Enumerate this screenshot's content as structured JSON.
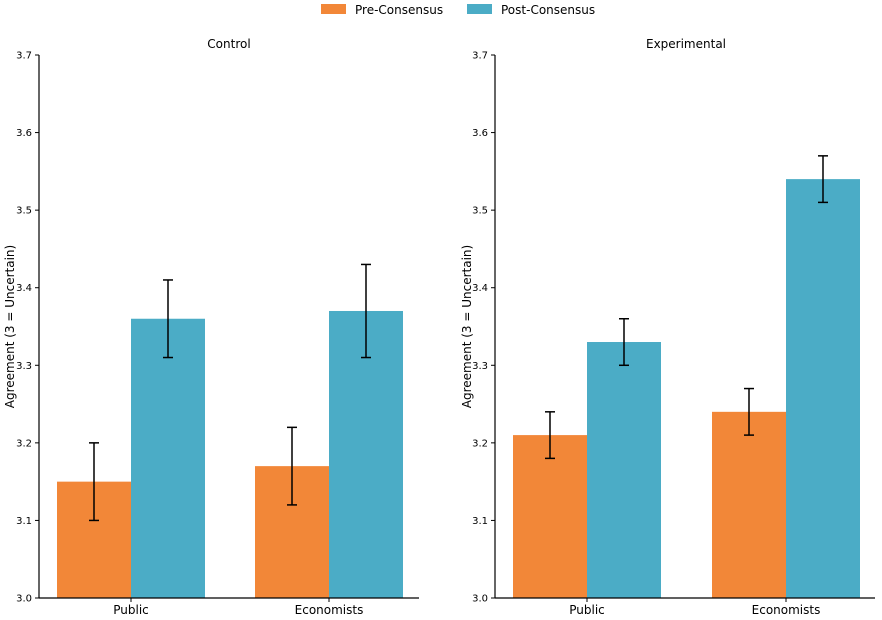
{
  "legend": {
    "entries": [
      {
        "label": "Pre-Consensus",
        "color": "#F28738"
      },
      {
        "label": "Post-Consensus",
        "color": "#4BACC6"
      }
    ],
    "placement": "top-center"
  },
  "chart_data": [
    {
      "type": "bar",
      "title": "Control",
      "ylabel": "Agreement (3 = Uncertain)",
      "xlabel": "",
      "categories": [
        "Public",
        "Economists"
      ],
      "ylim": [
        3.0,
        3.7
      ],
      "yticks": [
        "3.0",
        "3.1",
        "3.2",
        "3.3",
        "3.4",
        "3.5",
        "3.6",
        "3.7"
      ],
      "grid": false,
      "series": [
        {
          "name": "Pre-Consensus",
          "values": [
            3.15,
            3.17
          ],
          "errors": [
            0.05,
            0.05
          ],
          "color": "#F28738"
        },
        {
          "name": "Post-Consensus",
          "values": [
            3.36,
            3.37
          ],
          "errors": [
            0.05,
            0.06
          ],
          "color": "#4BACC6"
        }
      ]
    },
    {
      "type": "bar",
      "title": "Experimental",
      "ylabel": "Agreement (3 = Uncertain)",
      "xlabel": "",
      "categories": [
        "Public",
        "Economists"
      ],
      "ylim": [
        3.0,
        3.7
      ],
      "yticks": [
        "3.0",
        "3.1",
        "3.2",
        "3.3",
        "3.4",
        "3.5",
        "3.6",
        "3.7"
      ],
      "grid": false,
      "series": [
        {
          "name": "Pre-Consensus",
          "values": [
            3.21,
            3.24
          ],
          "errors": [
            0.03,
            0.03
          ],
          "color": "#F28738"
        },
        {
          "name": "Post-Consensus",
          "values": [
            3.33,
            3.54
          ],
          "errors": [
            0.03,
            0.03
          ],
          "color": "#4BACC6"
        }
      ]
    }
  ]
}
